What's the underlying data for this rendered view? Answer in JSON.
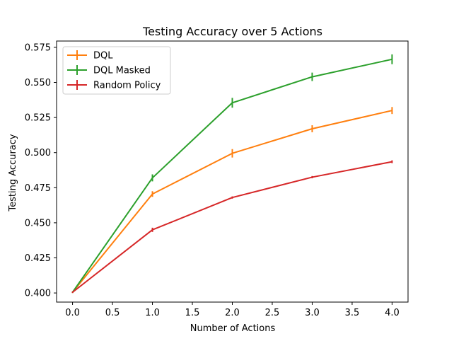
{
  "chart_data": {
    "type": "line",
    "title": "Testing Accuracy over 5 Actions",
    "xlabel": "Number of Actions",
    "ylabel": "Testing Accuracy",
    "xlim": [
      -0.2,
      4.2
    ],
    "ylim": [
      0.3935,
      0.5795
    ],
    "xticks": [
      0.0,
      0.5,
      1.0,
      1.5,
      2.0,
      2.5,
      3.0,
      3.5,
      4.0
    ],
    "xtick_labels": [
      "0.0",
      "0.5",
      "1.0",
      "1.5",
      "2.0",
      "2.5",
      "3.0",
      "3.5",
      "4.0"
    ],
    "yticks": [
      0.4,
      0.425,
      0.45,
      0.475,
      0.5,
      0.525,
      0.55,
      0.575
    ],
    "ytick_labels": [
      "0.400",
      "0.425",
      "0.450",
      "0.475",
      "0.500",
      "0.525",
      "0.550",
      "0.575"
    ],
    "grid": false,
    "legend_position": "top-left",
    "x": [
      0,
      1,
      2,
      3,
      4
    ],
    "series": [
      {
        "name": "DQL",
        "color": "#ff7f0e",
        "values": [
          0.4005,
          0.4705,
          0.4995,
          0.517,
          0.53
        ],
        "errors": [
          0.0002,
          0.002,
          0.003,
          0.0025,
          0.0025
        ]
      },
      {
        "name": "DQL Masked",
        "color": "#2ca02c",
        "values": [
          0.4005,
          0.482,
          0.5355,
          0.554,
          0.5665
        ],
        "errors": [
          0.0002,
          0.0025,
          0.0035,
          0.003,
          0.0035
        ]
      },
      {
        "name": "Random Policy",
        "color": "#d62728",
        "values": [
          0.4005,
          0.445,
          0.468,
          0.4825,
          0.4935
        ],
        "errors": [
          0.0002,
          0.0015,
          0.0008,
          0.0008,
          0.001
        ]
      }
    ]
  }
}
